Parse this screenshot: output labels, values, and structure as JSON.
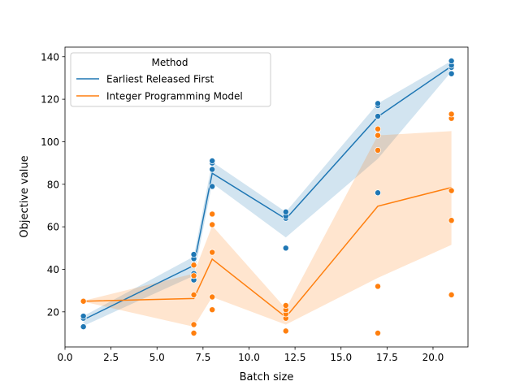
{
  "chart_data": {
    "type": "line",
    "xlabel": "Batch size",
    "ylabel": "Objective value",
    "xlim": [
      0,
      21.9
    ],
    "ylim": [
      3.5,
      144.5
    ],
    "xticks": [
      0.0,
      2.5,
      5.0,
      7.5,
      10.0,
      12.5,
      15.0,
      17.5,
      20.0
    ],
    "xtick_labels": [
      "0.0",
      "2.5",
      "5.0",
      "7.5",
      "10.0",
      "12.5",
      "15.0",
      "17.5",
      "20.0"
    ],
    "yticks": [
      20,
      40,
      60,
      80,
      100,
      120,
      140
    ],
    "ytick_labels": [
      "20",
      "40",
      "60",
      "80",
      "100",
      "120",
      "140"
    ],
    "grid": false,
    "legend": {
      "title": "Method",
      "placement": "top-left"
    },
    "series": [
      {
        "name": "Earliest Released First",
        "color": "#1f77b4",
        "x": [
          1,
          7,
          8,
          12,
          17,
          21
        ],
        "mean": [
          16.3,
          41.8,
          85.2,
          63.7,
          111.8,
          135.5
        ],
        "ci_low": [
          13.4,
          37.0,
          80.5,
          55.0,
          92.0,
          133.0
        ],
        "ci_high": [
          18.0,
          46.0,
          90.5,
          67.0,
          118.0,
          138.0
        ],
        "points": [
          [
            1,
            13
          ],
          [
            1,
            17
          ],
          [
            1,
            18
          ],
          [
            7,
            35
          ],
          [
            7,
            37
          ],
          [
            7,
            38
          ],
          [
            7,
            45
          ],
          [
            7,
            47
          ],
          [
            8,
            79
          ],
          [
            8,
            87
          ],
          [
            8,
            90
          ],
          [
            8,
            91
          ],
          [
            12,
            50
          ],
          [
            12,
            64
          ],
          [
            12,
            65
          ],
          [
            12,
            67
          ],
          [
            17,
            76
          ],
          [
            17,
            112
          ],
          [
            17,
            117
          ],
          [
            17,
            118
          ],
          [
            21,
            132
          ],
          [
            21,
            135
          ],
          [
            21,
            136
          ],
          [
            21,
            138
          ]
        ]
      },
      {
        "name": "Integer Programming Model",
        "color": "#ff7f0e",
        "x": [
          1,
          7,
          8,
          12,
          17,
          21
        ],
        "mean": [
          25.0,
          26.3,
          44.8,
          17.5,
          69.7,
          78.5
        ],
        "ci_low": [
          24.8,
          13.0,
          27.0,
          14.0,
          36.0,
          51.5
        ],
        "ci_high": [
          25.2,
          38.0,
          60.5,
          21.5,
          103.0,
          105.0
        ],
        "points": [
          [
            1,
            25
          ],
          [
            7,
            10
          ],
          [
            7,
            14
          ],
          [
            7,
            28
          ],
          [
            7,
            37
          ],
          [
            7,
            42
          ],
          [
            8,
            21
          ],
          [
            8,
            27
          ],
          [
            8,
            48
          ],
          [
            8,
            61
          ],
          [
            8,
            66
          ],
          [
            12,
            11
          ],
          [
            12,
            17
          ],
          [
            12,
            19
          ],
          [
            12,
            21
          ],
          [
            12,
            23
          ],
          [
            17,
            10
          ],
          [
            17,
            32
          ],
          [
            17,
            96
          ],
          [
            17,
            103
          ],
          [
            17,
            106
          ],
          [
            21,
            28
          ],
          [
            21,
            63
          ],
          [
            21,
            77
          ],
          [
            21,
            111
          ],
          [
            21,
            113
          ]
        ]
      }
    ]
  }
}
